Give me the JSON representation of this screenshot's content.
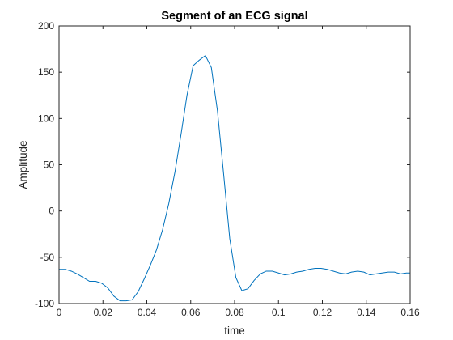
{
  "chart_data": {
    "type": "line",
    "title": "Segment of an ECG signal",
    "xlabel": "time",
    "ylabel": "Amplitude",
    "xlim": [
      0,
      0.16
    ],
    "ylim": [
      -100,
      200
    ],
    "xticks": [
      0,
      0.02,
      0.04,
      0.06,
      0.08,
      0.1,
      0.12,
      0.14,
      0.16
    ],
    "xtick_labels": [
      "0",
      "0.02",
      "0.04",
      "0.06",
      "0.08",
      "0.1",
      "0.12",
      "0.14",
      "0.16"
    ],
    "yticks": [
      -100,
      -50,
      0,
      50,
      100,
      150,
      200
    ],
    "ytick_labels": [
      "-100",
      "-50",
      "0",
      "50",
      "100",
      "150",
      "200"
    ],
    "grid": false,
    "legend": "none",
    "series": [
      {
        "color": "#0072bd",
        "x": [
          0,
          0.0028,
          0.0056,
          0.0083,
          0.0111,
          0.0139,
          0.0167,
          0.0194,
          0.0222,
          0.025,
          0.0278,
          0.0306,
          0.0333,
          0.0361,
          0.0389,
          0.0417,
          0.0444,
          0.0472,
          0.05,
          0.0528,
          0.0556,
          0.0583,
          0.0611,
          0.0639,
          0.0667,
          0.0694,
          0.0722,
          0.075,
          0.0778,
          0.0806,
          0.0833,
          0.0861,
          0.0889,
          0.0917,
          0.0944,
          0.0972,
          0.1,
          0.1028,
          0.1056,
          0.1083,
          0.1111,
          0.1139,
          0.1167,
          0.1194,
          0.1222,
          0.125,
          0.1278,
          0.1306,
          0.1333,
          0.1361,
          0.1389,
          0.1417,
          0.1444,
          0.1472,
          0.15,
          0.1528,
          0.1556,
          0.1583,
          0.16
        ],
        "y": [
          -63,
          -63,
          -65,
          -68,
          -72,
          -76,
          -76,
          -78,
          -83,
          -92,
          -97,
          -97,
          -96,
          -87,
          -73,
          -58,
          -42,
          -20,
          8,
          42,
          83,
          125,
          157,
          163,
          168,
          155,
          108,
          40,
          -30,
          -72,
          -86,
          -84,
          -75,
          -68,
          -65,
          -65,
          -67,
          -69,
          -68,
          -66,
          -65,
          -63,
          -62,
          -62,
          -63,
          -65,
          -67,
          -68,
          -66,
          -65,
          -66,
          -69,
          -68,
          -67,
          -66,
          -66,
          -68,
          -67,
          -67
        ]
      }
    ]
  }
}
